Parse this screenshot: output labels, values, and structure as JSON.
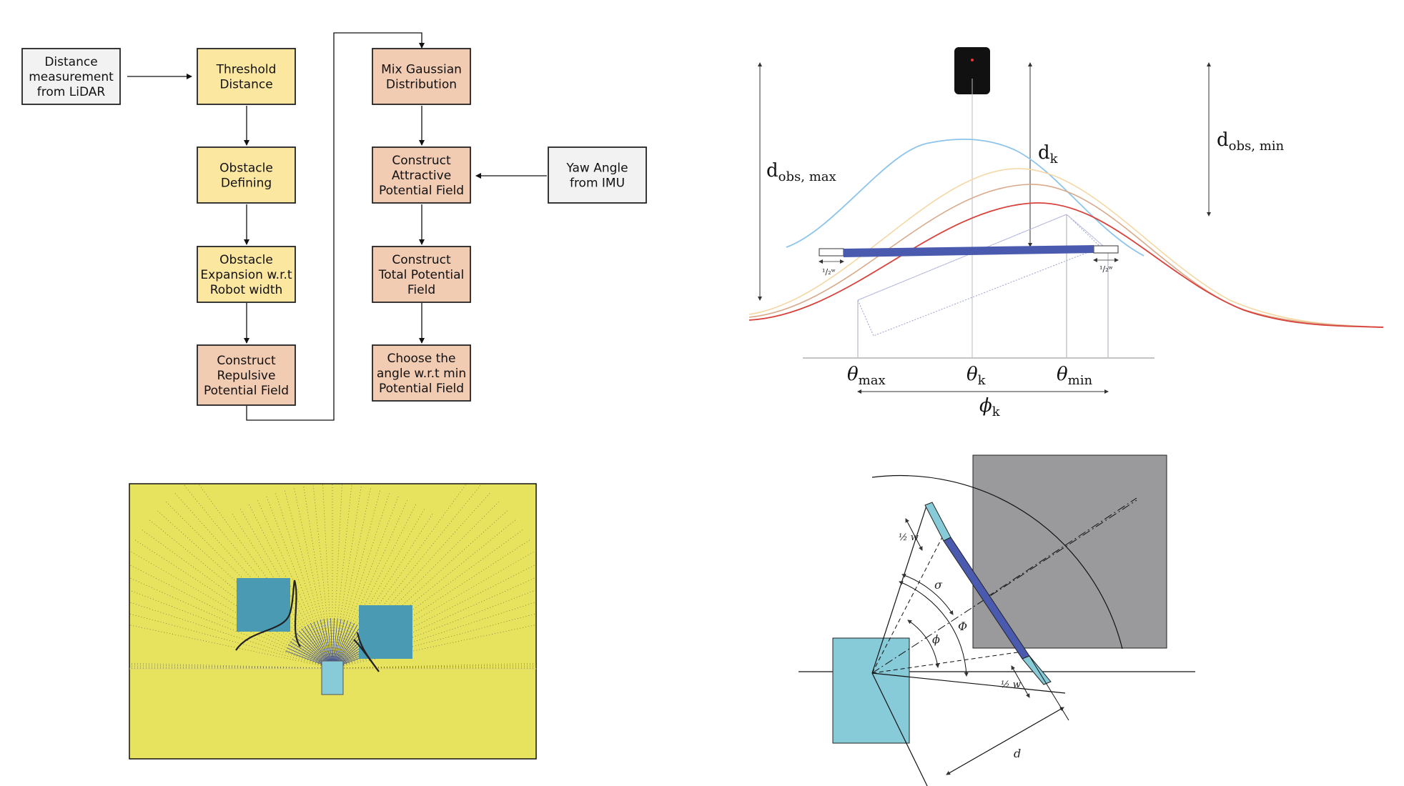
{
  "colors": {
    "yellow_box": "#FBE7A0",
    "salmon_box": "#F2CBB3",
    "grey_box": "#F2F2F2",
    "blue_curve": "#8CC4EC",
    "red_curve": "#D9413B",
    "robot_bar": "#4A5AAF",
    "plot_bg": "#E8E35E",
    "obstacle_teal": "#4A9AB4",
    "robot_cyan": "#87CAD8",
    "obstacle_grey": "#9A9A9D"
  },
  "flowchart": {
    "nodes": [
      {
        "id": "lidar",
        "lines": [
          "Distance",
          "measurement",
          "from LiDAR"
        ]
      },
      {
        "id": "thresh",
        "lines": [
          "Threshold",
          "Distance"
        ]
      },
      {
        "id": "obsdef",
        "lines": [
          "Obstacle",
          "Defining"
        ]
      },
      {
        "id": "expand",
        "lines": [
          "Obstacle",
          "Expansion w.r.t",
          "Robot width"
        ]
      },
      {
        "id": "repulse",
        "lines": [
          "Construct",
          "Repulsive",
          "Potential Field"
        ]
      },
      {
        "id": "mixg",
        "lines": [
          "Mix Gaussian",
          "Distribution"
        ]
      },
      {
        "id": "attract",
        "lines": [
          "Construct",
          "Attractive",
          "Potential Field"
        ]
      },
      {
        "id": "total",
        "lines": [
          "Construct",
          "Total Potential",
          "Field"
        ]
      },
      {
        "id": "choose",
        "lines": [
          "Choose the",
          "angle w.r.t min",
          "Potential Field"
        ]
      },
      {
        "id": "imu",
        "lines": [
          "Yaw Angle",
          "from IMU"
        ]
      }
    ]
  },
  "gaussian_diagram": {
    "d_obs_max": "d",
    "d_obs_max_sub": "obs, max",
    "d_obs_min": "d",
    "d_obs_min_sub": "obs, min",
    "d_k": "d",
    "d_k_sub": "k",
    "theta": "θ",
    "theta_max_sub": "max",
    "theta_k_sub": "k",
    "theta_min_sub": "min",
    "phi": "ϕ",
    "phi_sub": "k",
    "half_w": "¹/₂ʷ"
  },
  "geometry_diagram": {
    "half_w_top": "½ w",
    "half_w_bottom": "½ w",
    "sigma": "σ",
    "Phi": "Φ",
    "phi": "ϕ",
    "d": "d"
  }
}
